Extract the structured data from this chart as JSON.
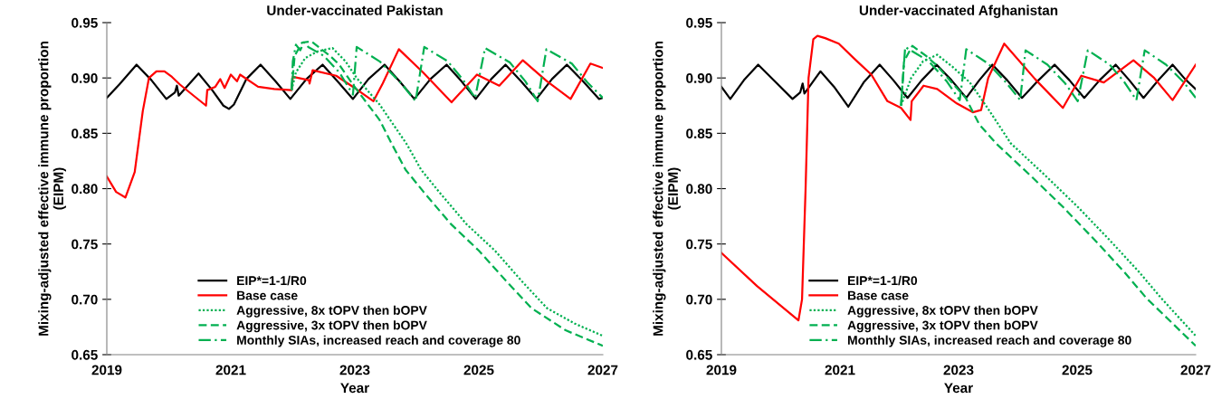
{
  "chart_data": [
    {
      "type": "line",
      "title": "Under-vaccinated Pakistan",
      "xlabel": "Year",
      "ylabel": "Mixing-adjusted effective immune proportion\n(EIPM)",
      "xlim": [
        2019,
        2027
      ],
      "xticks": [
        2019,
        2021,
        2023,
        2025,
        2027
      ],
      "ylim": [
        0.65,
        0.95
      ],
      "yticks": [
        {
          "value": 0.65,
          "label": "0.65"
        },
        {
          "value": 0.7,
          "label": "0.70"
        },
        {
          "value": 0.75,
          "label": "0.75"
        },
        {
          "value": 0.8,
          "label": "0.80"
        },
        {
          "value": 0.85,
          "label": "0.85"
        },
        {
          "value": 0.9,
          "label": "0.90"
        },
        {
          "value": 0.95,
          "label": "0.95"
        }
      ],
      "legend": "bottom left",
      "series": [
        {
          "name": "EIP*=1-1/R0",
          "color": "#000000",
          "line_style": "solid",
          "x": [
            2019.0,
            2019.2,
            2019.48,
            2019.72,
            2019.96,
            2020.1,
            2020.13,
            2020.16,
            2020.48,
            2020.7,
            2020.88,
            2020.97,
            2021.05,
            2021.25,
            2021.48,
            2021.72,
            2021.96,
            2022.22,
            2022.48,
            2022.72,
            2022.97,
            2023.22,
            2023.48,
            2023.72,
            2023.96,
            2024.22,
            2024.48,
            2024.72,
            2024.95,
            2025.2,
            2025.43,
            2025.68,
            2025.93,
            2026.18,
            2026.42,
            2026.68,
            2026.94,
            2027.0
          ],
          "values": [
            0.882,
            0.894,
            0.912,
            0.898,
            0.881,
            0.887,
            0.893,
            0.884,
            0.904,
            0.889,
            0.875,
            0.872,
            0.876,
            0.899,
            0.912,
            0.897,
            0.881,
            0.899,
            0.912,
            0.897,
            0.881,
            0.899,
            0.912,
            0.897,
            0.881,
            0.899,
            0.912,
            0.897,
            0.881,
            0.899,
            0.912,
            0.897,
            0.881,
            0.899,
            0.912,
            0.897,
            0.881,
            0.882
          ]
        },
        {
          "name": "Base case",
          "color": "#ff0000",
          "line_style": "solid",
          "x": [
            2019.0,
            2019.15,
            2019.3,
            2019.45,
            2019.58,
            2019.68,
            2019.8,
            2019.93,
            2020.05,
            2020.18,
            2020.4,
            2020.6,
            2020.62,
            2020.75,
            2020.83,
            2020.9,
            2021.0,
            2021.1,
            2021.15,
            2021.44,
            2021.7,
            2021.98,
            2022.0,
            2022.26,
            2022.27,
            2022.32,
            2022.7,
            2022.97,
            2023.3,
            2023.45,
            2023.71,
            2024.1,
            2024.56,
            2024.97,
            2025.33,
            2025.71,
            2026.1,
            2026.48,
            2026.8,
            2027.0
          ],
          "values": [
            0.811,
            0.797,
            0.792,
            0.815,
            0.87,
            0.9,
            0.906,
            0.906,
            0.901,
            0.894,
            0.884,
            0.875,
            0.889,
            0.892,
            0.899,
            0.891,
            0.903,
            0.897,
            0.903,
            0.892,
            0.89,
            0.889,
            0.901,
            0.898,
            0.895,
            0.907,
            0.902,
            0.892,
            0.879,
            0.895,
            0.926,
            0.905,
            0.878,
            0.903,
            0.893,
            0.916,
            0.897,
            0.881,
            0.913,
            0.909
          ]
        },
        {
          "name": "Aggressive, 8x tOPV then bOPV",
          "color": "#00b050",
          "line_style": "dotted",
          "x": [
            2021.98,
            2022.05,
            2022.2,
            2022.4,
            2022.64,
            2022.85,
            2023.03,
            2023.4,
            2023.84,
            2024.07,
            2024.36,
            2024.8,
            2025.26,
            2025.7,
            2026.1,
            2026.55,
            2027.0
          ],
          "values": [
            0.889,
            0.905,
            0.918,
            0.924,
            0.927,
            0.915,
            0.9,
            0.876,
            0.84,
            0.817,
            0.797,
            0.768,
            0.744,
            0.716,
            0.692,
            0.678,
            0.667
          ]
        },
        {
          "name": "Aggressive, 3x tOPV then bOPV",
          "color": "#00b050",
          "line_style": "dashed",
          "x": [
            2021.98,
            2022.03,
            2022.15,
            2022.3,
            2022.6,
            2022.75,
            2022.97,
            2023.4,
            2023.6,
            2023.82,
            2024.11,
            2024.55,
            2025.0,
            2025.45,
            2025.85,
            2026.4,
            2027.0
          ],
          "values": [
            0.889,
            0.92,
            0.932,
            0.933,
            0.92,
            0.912,
            0.894,
            0.862,
            0.84,
            0.817,
            0.797,
            0.768,
            0.744,
            0.716,
            0.692,
            0.672,
            0.658
          ]
        },
        {
          "name": "Monthly SIAs, increased reach and coverage 80",
          "color": "#00b050",
          "line_style": "dashdot",
          "x": [
            2021.98,
            2022.0,
            2022.05,
            2022.12,
            2022.18,
            2022.25,
            2022.5,
            2022.75,
            2022.97,
            2023.03,
            2023.4,
            2023.75,
            2023.98,
            2024.12,
            2024.5,
            2024.75,
            2024.94,
            2025.1,
            2025.5,
            2025.75,
            2025.95,
            2026.09,
            2026.5,
            2026.75,
            2027.0
          ],
          "values": [
            0.889,
            0.915,
            0.93,
            0.925,
            0.932,
            0.928,
            0.92,
            0.905,
            0.885,
            0.928,
            0.915,
            0.895,
            0.879,
            0.928,
            0.915,
            0.898,
            0.882,
            0.927,
            0.914,
            0.897,
            0.879,
            0.926,
            0.913,
            0.896,
            0.882
          ]
        }
      ]
    },
    {
      "type": "line",
      "title": "Under-vaccinated Afghanistan",
      "xlabel": "Year",
      "ylabel": "Mixing-adjusted effective immune proportion\n(EIPM)",
      "xlim": [
        2019,
        2027
      ],
      "xticks": [
        2019,
        2021,
        2023,
        2025,
        2027
      ],
      "ylim": [
        0.65,
        0.95
      ],
      "yticks": [
        {
          "value": 0.65,
          "label": "0.65"
        },
        {
          "value": 0.7,
          "label": "0.70"
        },
        {
          "value": 0.75,
          "label": "0.75"
        },
        {
          "value": 0.8,
          "label": "0.80"
        },
        {
          "value": 0.85,
          "label": "0.85"
        },
        {
          "value": 0.9,
          "label": "0.90"
        },
        {
          "value": 0.95,
          "label": "0.95"
        }
      ],
      "legend": "bottom left",
      "series": [
        {
          "name": "EIP*=1-1/R0",
          "color": "#000000",
          "line_style": "solid",
          "x": [
            2019.0,
            2019.15,
            2019.38,
            2019.62,
            2019.9,
            2020.2,
            2020.33,
            2020.37,
            2020.4,
            2020.67,
            2020.9,
            2021.14,
            2021.4,
            2021.67,
            2021.9,
            2022.14,
            2022.38,
            2022.63,
            2022.88,
            2023.13,
            2023.35,
            2023.57,
            2023.82,
            2024.07,
            2024.35,
            2024.62,
            2024.87,
            2025.12,
            2025.38,
            2025.65,
            2025.88,
            2026.12,
            2026.37,
            2026.61,
            2026.82,
            2027.0
          ],
          "values": [
            0.892,
            0.881,
            0.898,
            0.912,
            0.897,
            0.881,
            0.887,
            0.895,
            0.886,
            0.906,
            0.892,
            0.874,
            0.896,
            0.912,
            0.898,
            0.882,
            0.898,
            0.912,
            0.898,
            0.882,
            0.898,
            0.912,
            0.898,
            0.882,
            0.898,
            0.912,
            0.898,
            0.882,
            0.898,
            0.912,
            0.898,
            0.882,
            0.898,
            0.912,
            0.899,
            0.89
          ]
        },
        {
          "name": "Base case",
          "color": "#ff0000",
          "line_style": "solid",
          "x": [
            2019.0,
            2019.6,
            2020.3,
            2020.36,
            2020.42,
            2020.47,
            2020.55,
            2020.62,
            2020.75,
            2020.98,
            2021.25,
            2021.53,
            2021.8,
            2022.03,
            2022.19,
            2022.21,
            2022.41,
            2022.64,
            2022.97,
            2023.24,
            2023.38,
            2023.5,
            2023.77,
            2024.29,
            2024.76,
            2025.07,
            2025.45,
            2025.95,
            2026.3,
            2026.61,
            2027.0
          ],
          "values": [
            0.742,
            0.712,
            0.681,
            0.7,
            0.8,
            0.9,
            0.935,
            0.938,
            0.936,
            0.931,
            0.917,
            0.903,
            0.879,
            0.873,
            0.862,
            0.879,
            0.893,
            0.89,
            0.877,
            0.869,
            0.871,
            0.9,
            0.931,
            0.899,
            0.873,
            0.902,
            0.896,
            0.916,
            0.9,
            0.88,
            0.912
          ]
        },
        {
          "name": "Aggressive, 8x tOPV then bOPV",
          "color": "#00b050",
          "line_style": "dotted",
          "x": [
            2022.03,
            2022.2,
            2022.4,
            2022.64,
            2022.9,
            2023.19,
            2023.5,
            2023.88,
            2024.46,
            2025.02,
            2025.54,
            2026.04,
            2026.42,
            2027.0
          ],
          "values": [
            0.875,
            0.9,
            0.915,
            0.921,
            0.91,
            0.896,
            0.872,
            0.841,
            0.812,
            0.783,
            0.754,
            0.725,
            0.701,
            0.667
          ]
        },
        {
          "name": "Aggressive, 3x tOPV then bOPV",
          "color": "#00b050",
          "line_style": "dashed",
          "x": [
            2022.03,
            2022.08,
            2022.22,
            2022.45,
            2022.64,
            2022.9,
            2023.12,
            2023.35,
            2023.63,
            2024.21,
            2024.77,
            2025.29,
            2025.79,
            2026.17,
            2027.0
          ],
          "values": [
            0.875,
            0.915,
            0.929,
            0.92,
            0.911,
            0.895,
            0.882,
            0.858,
            0.841,
            0.812,
            0.783,
            0.754,
            0.725,
            0.701,
            0.658
          ]
        },
        {
          "name": "Monthly SIAs, increased reach and coverage 80",
          "color": "#00b050",
          "line_style": "dashdot",
          "x": [
            2022.03,
            2022.1,
            2022.5,
            2022.8,
            2023.02,
            2023.13,
            2023.5,
            2023.8,
            2024.04,
            2024.13,
            2024.5,
            2024.8,
            2025.01,
            2025.18,
            2025.55,
            2025.8,
            2026.0,
            2026.14,
            2026.5,
            2026.8,
            2027.0
          ],
          "values": [
            0.875,
            0.928,
            0.915,
            0.897,
            0.88,
            0.926,
            0.913,
            0.896,
            0.88,
            0.925,
            0.912,
            0.895,
            0.879,
            0.925,
            0.912,
            0.896,
            0.88,
            0.925,
            0.912,
            0.896,
            0.882
          ]
        }
      ]
    }
  ]
}
